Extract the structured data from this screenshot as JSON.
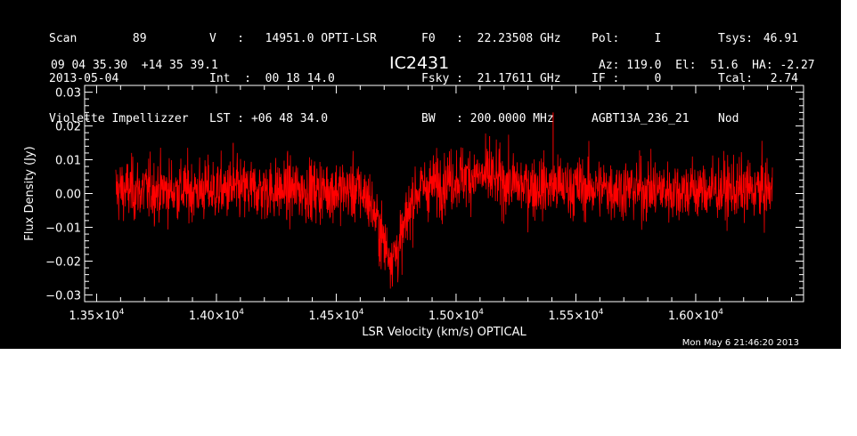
{
  "header": {
    "col1": [
      "Scan        89",
      "2013-05-04",
      "Violette Impellizzer"
    ],
    "col2": [
      "V   :   14951.0 OPTI-LSR",
      "Int  :  00 18 14.0",
      "LST : +06 48 34.0"
    ],
    "col3": [
      "F0   :  22.23508 GHz",
      "Fsky :  21.17611 GHz",
      "BW   : 200.0000 MHz"
    ],
    "col4": [
      "Pol:     I",
      "IF :     0",
      "AGBT13A_236_21"
    ],
    "col5a": [
      "Tsys:",
      "Tcal:",
      "Nod"
    ],
    "col5b": [
      "46.91",
      "2.74",
      ""
    ],
    "coords": "09 04 35.30  +14 35 39.1",
    "source": "IC2431",
    "azelha": "Az: 119.0  El:  51.6  HA: -2.27"
  },
  "footer_timestamp": "Mon May  6 21:46:20 2013",
  "colors": {
    "background": "#000000",
    "axes": "#ffffff",
    "trace": "#ff0000",
    "page": "#ffffff"
  },
  "chart_data": {
    "type": "line",
    "xlabel": "LSR Velocity (km/s) OPTICAL",
    "ylabel": "Flux Density (Jy)",
    "xlim": [
      13450,
      16450
    ],
    "ylim": [
      -0.032,
      0.032
    ],
    "x_range": [
      13580,
      16320
    ],
    "xticks": [
      13500,
      14000,
      14500,
      15000,
      15500,
      16000
    ],
    "xtick_labels": [
      {
        "mant": "1.35×10",
        "exp": "4"
      },
      {
        "mant": "1.40×10",
        "exp": "4"
      },
      {
        "mant": "1.45×10",
        "exp": "4"
      },
      {
        "mant": "1.50×10",
        "exp": "4"
      },
      {
        "mant": "1.55×10",
        "exp": "4"
      },
      {
        "mant": "1.60×10",
        "exp": "4"
      }
    ],
    "yticks": [
      -0.03,
      -0.02,
      -0.01,
      0.0,
      0.01,
      0.02,
      0.03
    ],
    "ytick_labels": [
      "−0.03",
      "−0.02",
      "−0.01",
      "0.00",
      "0.01",
      "0.02",
      "0.03"
    ],
    "noise_rms": 0.0045,
    "baseline": 0.001,
    "absorption_features": [
      {
        "center": 14720,
        "depth": -0.017,
        "width": 45
      },
      {
        "center": 14770,
        "depth": -0.006,
        "width": 30
      }
    ],
    "emission_features": [
      {
        "center": 15060,
        "height": 0.004,
        "width": 110
      },
      {
        "center": 15400,
        "height": 0.001,
        "width": 200
      }
    ],
    "spikes": [
      {
        "x": 15405,
        "y": 0.024
      },
      {
        "x": 15140,
        "y": 0.017
      },
      {
        "x": 14070,
        "y": 0.015
      }
    ],
    "grid": false
  }
}
